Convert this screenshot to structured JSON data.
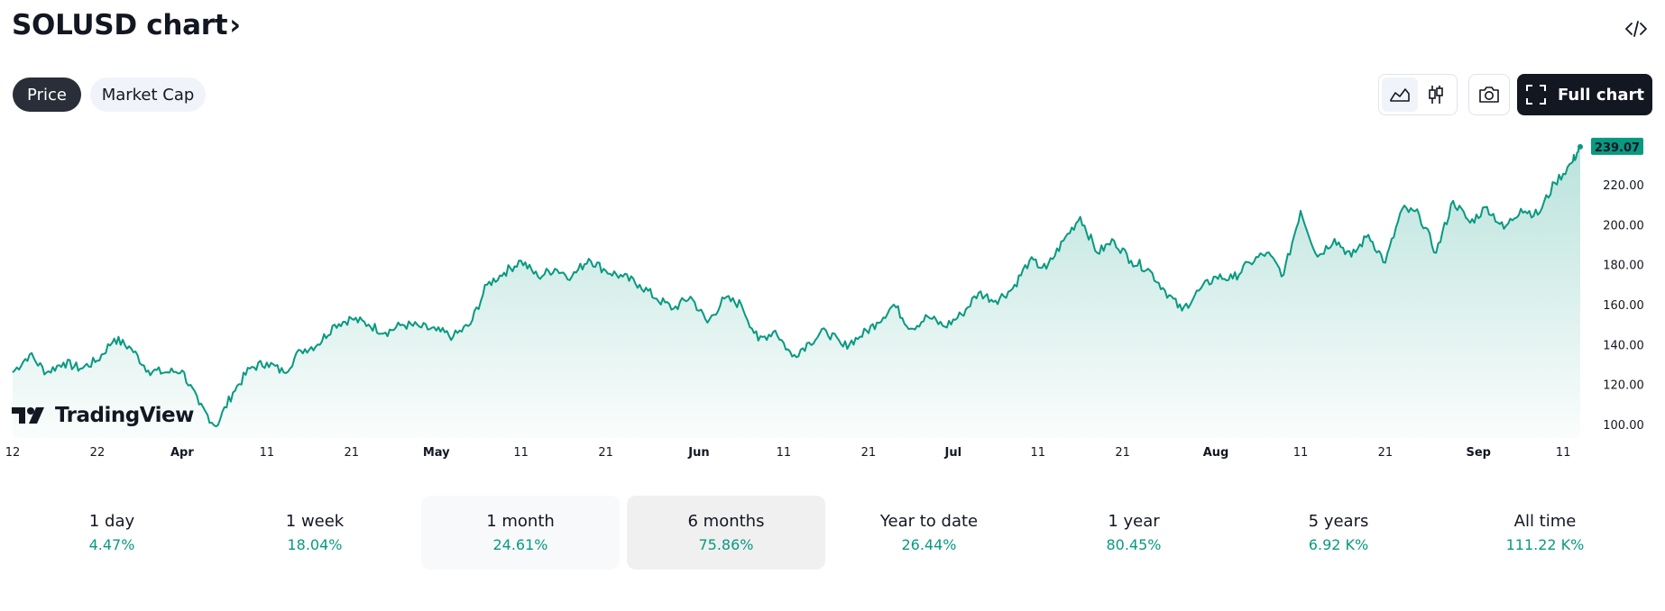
{
  "header": {
    "title": "SOLUSD chart",
    "chevron": "›",
    "embed_icon": "code-icon"
  },
  "tabs": [
    {
      "label": "Price",
      "active": true
    },
    {
      "label": "Market Cap",
      "active": false
    }
  ],
  "toolbar": {
    "full_chart_label": "Full chart"
  },
  "branding": {
    "logo_text": "TradingView"
  },
  "colors": {
    "line": "#089981",
    "accent": "#089981",
    "dark": "#131722"
  },
  "chart_data": {
    "type": "area",
    "symbol": "SOLUSD",
    "ylim": [
      95,
      244
    ],
    "y_ticks": [
      100,
      120,
      140,
      160,
      180,
      200,
      220
    ],
    "y_tick_labels": [
      "100.00",
      "120.00",
      "140.00",
      "160.00",
      "180.00",
      "200.00",
      "220.00"
    ],
    "last_value": 239.07,
    "last_value_label": "239.07",
    "x_tick_labels": [
      "12",
      "22",
      "Apr",
      "11",
      "21",
      "May",
      "11",
      "21",
      "Jun",
      "11",
      "21",
      "Jul",
      "11",
      "21",
      "Aug",
      "11",
      "21",
      "Sep",
      "11"
    ],
    "x_tick_major": [
      false,
      false,
      true,
      false,
      false,
      true,
      false,
      false,
      true,
      false,
      false,
      true,
      false,
      false,
      true,
      false,
      false,
      true,
      false
    ],
    "x_tick_dates": [
      "Mar 12",
      "Mar 22",
      "Apr 1",
      "Apr 11",
      "Apr 21",
      "May 1",
      "May 11",
      "May 21",
      "Jun 1",
      "Jun 11",
      "Jun 21",
      "Jul 1",
      "Jul 11",
      "Jul 21",
      "Aug 1",
      "Aug 11",
      "Aug 21",
      "Sep 1",
      "Sep 11"
    ],
    "x_tick_day_index": [
      0,
      10,
      20,
      30,
      40,
      50,
      60,
      70,
      81,
      91,
      101,
      111,
      121,
      131,
      142,
      152,
      162,
      173,
      183
    ],
    "day_range": [
      0,
      185
    ],
    "series": [
      {
        "name": "SOLUSD",
        "x": [
          0,
          2,
          4,
          6,
          8,
          10,
          12,
          14,
          16,
          18,
          20,
          22,
          24,
          26,
          28,
          30,
          32,
          34,
          36,
          38,
          40,
          42,
          44,
          46,
          48,
          50,
          52,
          54,
          56,
          58,
          60,
          62,
          64,
          66,
          68,
          70,
          72,
          74,
          76,
          78,
          80,
          82,
          84,
          86,
          88,
          90,
          92,
          94,
          96,
          98,
          100,
          102,
          104,
          106,
          108,
          110,
          112,
          114,
          116,
          118,
          120,
          122,
          124,
          126,
          128,
          130,
          132,
          134,
          136,
          138,
          140,
          142,
          144,
          146,
          148,
          150,
          152,
          154,
          156,
          158,
          160,
          162,
          164,
          166,
          168,
          170,
          172,
          174,
          176,
          178,
          180,
          182,
          184,
          185
        ],
        "values": [
          126,
          135,
          126,
          131,
          128,
          132,
          143,
          138,
          127,
          126,
          127,
          110,
          99,
          116,
          128,
          131,
          126,
          137,
          140,
          150,
          153,
          150,
          146,
          150,
          149,
          147,
          144,
          150,
          170,
          176,
          182,
          174,
          178,
          174,
          183,
          177,
          174,
          170,
          163,
          158,
          164,
          151,
          163,
          160,
          142,
          147,
          134,
          141,
          147,
          139,
          144,
          151,
          160,
          148,
          154,
          149,
          155,
          166,
          162,
          168,
          182,
          178,
          192,
          204,
          186,
          192,
          182,
          178,
          167,
          157,
          167,
          174,
          173,
          181,
          186,
          175,
          207,
          184,
          193,
          184,
          195,
          181,
          208,
          205,
          186,
          212,
          201,
          209,
          198,
          208,
          205,
          221,
          231,
          239.07
        ]
      }
    ]
  },
  "periods": [
    {
      "label": "1 day",
      "value": "4.47%",
      "state": "normal"
    },
    {
      "label": "1 week",
      "value": "18.04%",
      "state": "normal"
    },
    {
      "label": "1 month",
      "value": "24.61%",
      "state": "hover"
    },
    {
      "label": "6 months",
      "value": "75.86%",
      "state": "active"
    },
    {
      "label": "Year to date",
      "value": "26.44%",
      "state": "normal"
    },
    {
      "label": "1 year",
      "value": "80.45%",
      "state": "normal"
    },
    {
      "label": "5 years",
      "value": "6.92 K%",
      "state": "normal"
    },
    {
      "label": "All time",
      "value": "111.22 K%",
      "state": "normal"
    }
  ]
}
